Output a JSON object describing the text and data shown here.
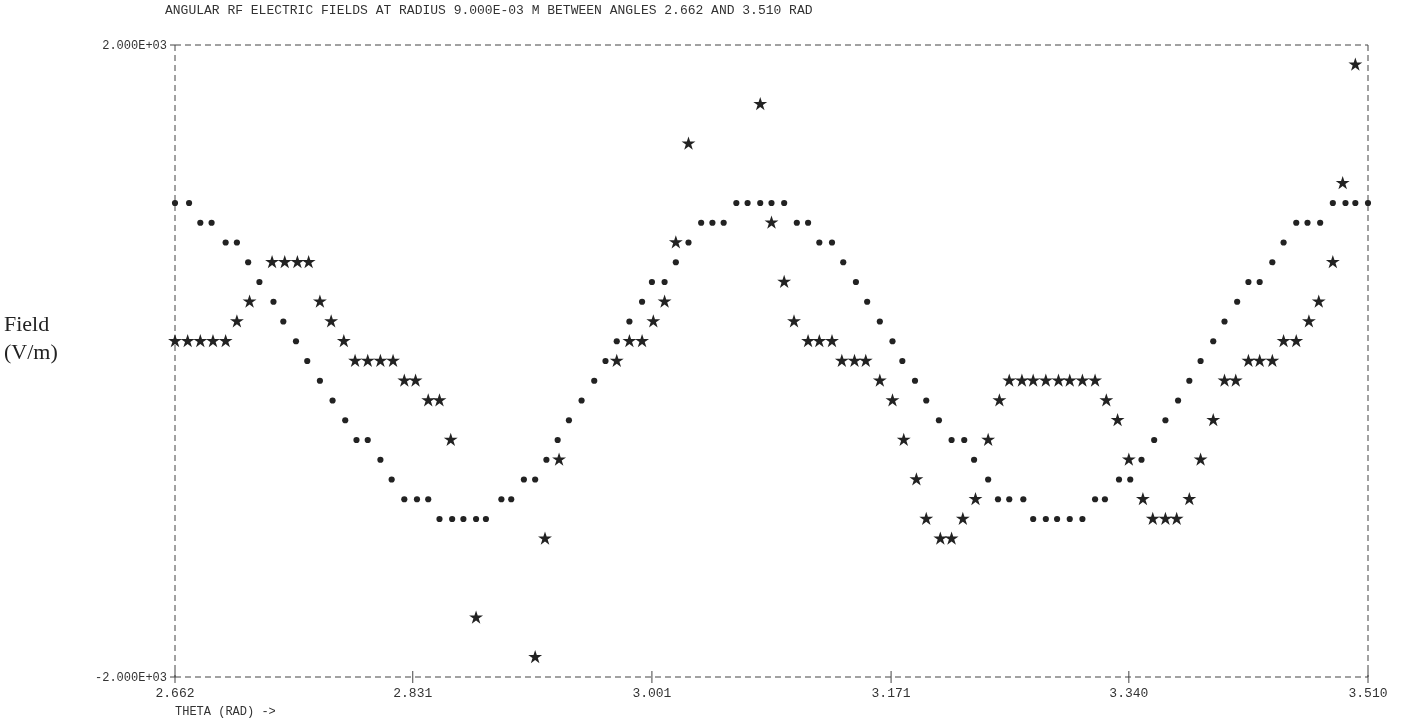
{
  "chart_data": {
    "type": "scatter",
    "title": "ANGULAR RF ELECTRIC FIELDS AT RADIUS 9.000E-03 M BETWEEN ANGLES 2.662 AND 3.510 RAD",
    "xlabel": "THETA (RAD) ->",
    "ylabel": "Field\n(V/m)",
    "xlim": [
      2.662,
      3.51
    ],
    "xticks": [
      2.662,
      2.831,
      3.001,
      3.171,
      {
        "value": 3.34,
        "label": "3.340"
      },
      {
        "value": 3.51,
        "label": "3.510"
      }
    ],
    "ylim": [
      -2000,
      2000
    ],
    "yticks": [
      {
        "value": -2000,
        "label": "-2.000E+03"
      },
      {
        "value": 2000,
        "label": "2.000E+03"
      }
    ],
    "series": [
      {
        "color": "#222222",
        "marker": "circle",
        "x": [
          2.662,
          2.672,
          2.68,
          2.688,
          2.698,
          2.706,
          2.714,
          2.722,
          2.732,
          2.739,
          2.748,
          2.756,
          2.765,
          2.774,
          2.783,
          2.791,
          2.799,
          2.808,
          2.816,
          2.825,
          2.834,
          2.842,
          2.85,
          2.859,
          2.867,
          2.876,
          2.883,
          2.894,
          2.901,
          2.91,
          2.918,
          2.926,
          2.934,
          2.942,
          2.951,
          2.96,
          2.968,
          2.976,
          2.985,
          2.994,
          3.001,
          3.01,
          3.018,
          3.027,
          3.036,
          3.044,
          3.052,
          3.061,
          3.069,
          3.078,
          3.086,
          3.095,
          3.104,
          3.112,
          3.12,
          3.129,
          3.137,
          3.146,
          3.154,
          3.163,
          3.172,
          3.179,
          3.188,
          3.196,
          3.205,
          3.214,
          3.223,
          3.23,
          3.24,
          3.247,
          3.255,
          3.265,
          3.272,
          3.281,
          3.289,
          3.298,
          3.307,
          3.316,
          3.323,
          3.333,
          3.341,
          3.349,
          3.358,
          3.366,
          3.375,
          3.383,
          3.391,
          3.4,
          3.408,
          3.417,
          3.425,
          3.433,
          3.442,
          3.45,
          3.459,
          3.467,
          3.476,
          3.485,
          3.494,
          3.501,
          3.51
        ],
        "values": [
          1000,
          1000,
          875,
          875,
          750,
          750,
          625,
          500,
          375,
          250,
          125,
          0,
          -125,
          -250,
          -375,
          -500,
          -500,
          -625,
          -750,
          -875,
          -875,
          -875,
          -1000,
          -1000,
          -1000,
          -1000,
          -1000,
          -875,
          -875,
          -750,
          -750,
          -625,
          -500,
          -375,
          -250,
          -125,
          0,
          125,
          250,
          375,
          500,
          500,
          625,
          750,
          875,
          875,
          875,
          1000,
          1000,
          1000,
          1000,
          1000,
          875,
          875,
          750,
          750,
          625,
          500,
          375,
          250,
          125,
          0,
          -125,
          -250,
          -375,
          -500,
          -500,
          -625,
          -750,
          -875,
          -875,
          -875,
          -1000,
          -1000,
          -1000,
          -1000,
          -1000,
          -875,
          -875,
          -750,
          -750,
          -625,
          -500,
          -375,
          -250,
          -125,
          0,
          125,
          250,
          375,
          500,
          500,
          625,
          750,
          875,
          875,
          875,
          1000,
          1000,
          1000,
          1000
        ]
      },
      {
        "color": "#222222",
        "marker": "star",
        "x": [
          2.662,
          2.671,
          2.68,
          2.689,
          2.698,
          2.706,
          2.715,
          2.731,
          2.74,
          2.749,
          2.757,
          2.765,
          2.773,
          2.782,
          2.79,
          2.799,
          2.808,
          2.817,
          2.825,
          2.833,
          2.842,
          2.85,
          2.858,
          2.876,
          2.918,
          2.925,
          2.935,
          2.976,
          2.985,
          2.994,
          3.002,
          3.01,
          3.018,
          3.027,
          3.078,
          3.086,
          3.095,
          3.102,
          3.112,
          3.12,
          3.129,
          3.136,
          3.145,
          3.153,
          3.163,
          3.172,
          3.18,
          3.189,
          3.196,
          3.206,
          3.214,
          3.222,
          3.231,
          3.24,
          3.248,
          3.255,
          3.264,
          3.272,
          3.281,
          3.29,
          3.298,
          3.307,
          3.316,
          3.324,
          3.332,
          3.34,
          3.35,
          3.357,
          3.366,
          3.374,
          3.383,
          3.391,
          3.4,
          3.408,
          3.416,
          3.425,
          3.433,
          3.442,
          3.45,
          3.459,
          3.468,
          3.475,
          3.485,
          3.492,
          3.501
        ],
        "values": [
          125,
          125,
          125,
          125,
          125,
          250,
          375,
          625,
          625,
          625,
          625,
          375,
          250,
          125,
          0,
          0,
          0,
          0,
          -125,
          -125,
          -250,
          -250,
          -500,
          -1625,
          -1875,
          -1125,
          -625,
          0,
          125,
          125,
          250,
          375,
          750,
          1375,
          1625,
          875,
          500,
          250,
          125,
          125,
          125,
          0,
          0,
          0,
          -125,
          -250,
          -500,
          -750,
          -1000,
          -1125,
          -1125,
          -1000,
          -875,
          -500,
          -250,
          -125,
          -125,
          -125,
          -125,
          -125,
          -125,
          -125,
          -125,
          -250,
          -375,
          -625,
          -875,
          -1000,
          -1000,
          -1000,
          -875,
          -625,
          -375,
          -125,
          -125,
          0,
          0,
          0,
          125,
          125,
          250,
          375,
          625,
          1125,
          1875
        ]
      }
    ]
  }
}
